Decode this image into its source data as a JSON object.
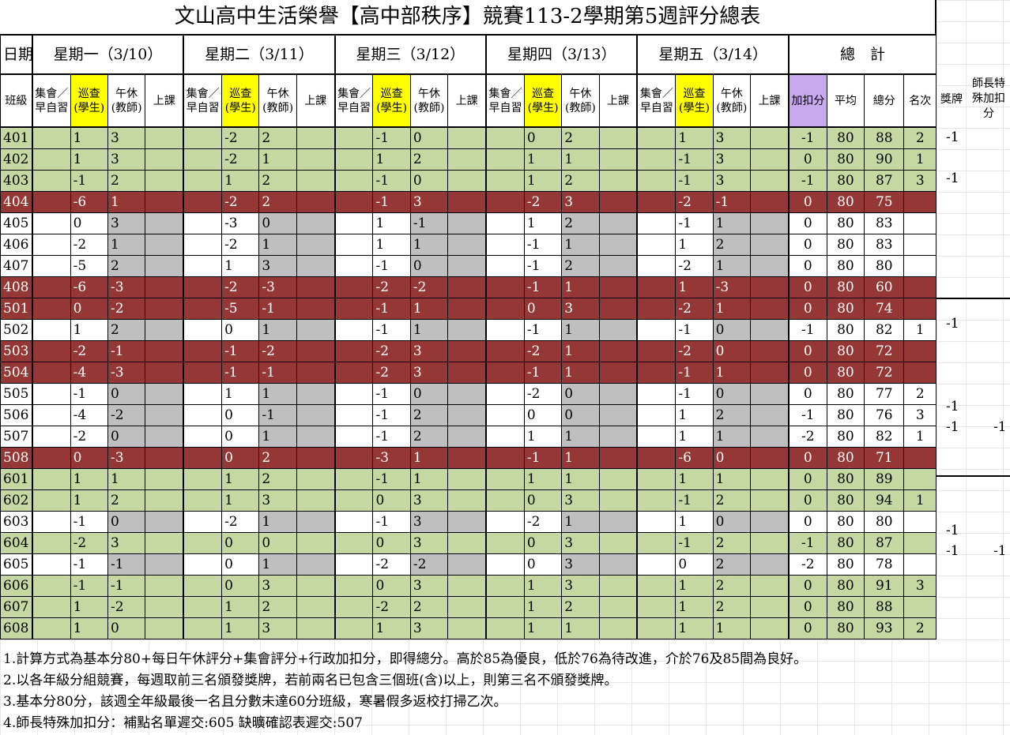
{
  "title": "文山高中生活榮譽【高中部秩序】競賽113-2學期第5週評分總表",
  "header": {
    "date_label": "日期",
    "class_label": "班級",
    "days": [
      "星期一（3/10）",
      "星期二（3/11）",
      "星期三（3/12）",
      "星期四（3/13）",
      "星期五（3/14）"
    ],
    "total_label": "總　計",
    "sub": {
      "assembly": "集會／早自習",
      "patrol": "巡查(學生)",
      "noon": "午休(教師)",
      "class": "上課"
    },
    "totals": [
      "加扣分",
      "平均",
      "總分",
      "名次"
    ],
    "award": "獎牌",
    "teacher": "師長特殊加扣分"
  },
  "colors": {
    "green": "#c5d8a2",
    "red": "#953734",
    "gray": "#bfbfbf",
    "yellow": "#ffff00",
    "purple": "#c8a8ee"
  },
  "rows": [
    {
      "cls": "401",
      "t": "g",
      "d": [
        [
          "1",
          "3"
        ],
        [
          "-2",
          "2"
        ],
        [
          "-1",
          "0"
        ],
        [
          "0",
          "2"
        ],
        [
          "1",
          "3"
        ]
      ],
      "adj": "-1",
      "avg": "80",
      "total": "88",
      "rank": "2",
      "award": "-1",
      "teacher": ""
    },
    {
      "cls": "402",
      "t": "g",
      "d": [
        [
          "1",
          "3"
        ],
        [
          "-2",
          "1"
        ],
        [
          "1",
          "2"
        ],
        [
          "1",
          "1"
        ],
        [
          "-1",
          "3"
        ]
      ],
      "adj": "0",
      "avg": "80",
      "total": "90",
      "rank": "1",
      "award": "",
      "teacher": ""
    },
    {
      "cls": "403",
      "t": "g",
      "d": [
        [
          "-1",
          "2"
        ],
        [
          "1",
          "2"
        ],
        [
          "-1",
          "0"
        ],
        [
          "1",
          "2"
        ],
        [
          "-1",
          "3"
        ]
      ],
      "adj": "-1",
      "avg": "80",
      "total": "87",
      "rank": "3",
      "award": "-1",
      "teacher": ""
    },
    {
      "cls": "404",
      "t": "r",
      "d": [
        [
          "-6",
          "1"
        ],
        [
          "-2",
          "2"
        ],
        [
          "-1",
          "3"
        ],
        [
          "-2",
          "3"
        ],
        [
          "-2",
          "-1"
        ]
      ],
      "adj": "0",
      "avg": "80",
      "total": "75",
      "rank": "",
      "award": "",
      "teacher": ""
    },
    {
      "cls": "405",
      "t": "w",
      "d": [
        [
          "0",
          "3"
        ],
        [
          "-3",
          "0"
        ],
        [
          "1",
          "-1"
        ],
        [
          "1",
          "2"
        ],
        [
          "-1",
          "1"
        ]
      ],
      "adj": "0",
      "avg": "80",
      "total": "83",
      "rank": "",
      "award": "",
      "teacher": ""
    },
    {
      "cls": "406",
      "t": "w",
      "d": [
        [
          "-2",
          "1"
        ],
        [
          "-2",
          "1"
        ],
        [
          "1",
          "1"
        ],
        [
          "-1",
          "1"
        ],
        [
          "1",
          "2"
        ]
      ],
      "adj": "0",
      "avg": "80",
      "total": "83",
      "rank": "",
      "award": "",
      "teacher": ""
    },
    {
      "cls": "407",
      "t": "w",
      "d": [
        [
          "-5",
          "2"
        ],
        [
          "1",
          "3"
        ],
        [
          "-1",
          "0"
        ],
        [
          "-1",
          "2"
        ],
        [
          "-2",
          "1"
        ]
      ],
      "adj": "0",
      "avg": "80",
      "total": "80",
      "rank": "",
      "award": "",
      "teacher": ""
    },
    {
      "cls": "408",
      "t": "r",
      "d": [
        [
          "-6",
          "-3"
        ],
        [
          "-2",
          "-3"
        ],
        [
          "-2",
          "-2"
        ],
        [
          "-1",
          "1"
        ],
        [
          "1",
          "-3"
        ]
      ],
      "adj": "0",
      "avg": "80",
      "total": "60",
      "rank": "",
      "award": "",
      "teacher": ""
    },
    {
      "cls": "501",
      "t": "r",
      "d": [
        [
          "0",
          "-2"
        ],
        [
          "-5",
          "-1"
        ],
        [
          "-1",
          "1"
        ],
        [
          "0",
          "3"
        ],
        [
          "-2",
          "1"
        ]
      ],
      "adj": "0",
      "avg": "80",
      "total": "74",
      "rank": "",
      "award": "",
      "teacher": ""
    },
    {
      "cls": "502",
      "t": "w",
      "d": [
        [
          "1",
          "2"
        ],
        [
          "0",
          "1"
        ],
        [
          "-1",
          "1"
        ],
        [
          "-1",
          "1"
        ],
        [
          "-1",
          "0"
        ]
      ],
      "adj": "-1",
      "avg": "80",
      "total": "82",
      "rank": "1",
      "award": "-1",
      "teacher": ""
    },
    {
      "cls": "503",
      "t": "r",
      "d": [
        [
          "-2",
          "-1"
        ],
        [
          "-1",
          "-2"
        ],
        [
          "-2",
          "3"
        ],
        [
          "-2",
          "1"
        ],
        [
          "-2",
          "0"
        ]
      ],
      "adj": "0",
      "avg": "80",
      "total": "72",
      "rank": "",
      "award": "",
      "teacher": ""
    },
    {
      "cls": "504",
      "t": "r",
      "d": [
        [
          "-4",
          "-3"
        ],
        [
          "-1",
          "-1"
        ],
        [
          "-2",
          "3"
        ],
        [
          "-1",
          "1"
        ],
        [
          "-1",
          "1"
        ]
      ],
      "adj": "0",
      "avg": "80",
      "total": "72",
      "rank": "",
      "award": "",
      "teacher": ""
    },
    {
      "cls": "505",
      "t": "w",
      "d": [
        [
          "-1",
          "0"
        ],
        [
          "1",
          "1"
        ],
        [
          "-1",
          "0"
        ],
        [
          "-2",
          "0"
        ],
        [
          "-1",
          "0"
        ]
      ],
      "adj": "0",
      "avg": "80",
      "total": "77",
      "rank": "2",
      "award": "",
      "teacher": ""
    },
    {
      "cls": "506",
      "t": "w",
      "d": [
        [
          "-4",
          "-2"
        ],
        [
          "0",
          "-1"
        ],
        [
          "-1",
          "2"
        ],
        [
          "0",
          "0"
        ],
        [
          "1",
          "2"
        ]
      ],
      "adj": "-1",
      "avg": "80",
      "total": "76",
      "rank": "3",
      "award": "-1",
      "teacher": ""
    },
    {
      "cls": "507",
      "t": "w",
      "d": [
        [
          "-2",
          "0"
        ],
        [
          "0",
          "1"
        ],
        [
          "-1",
          "2"
        ],
        [
          "1",
          "1"
        ],
        [
          "1",
          "1"
        ]
      ],
      "adj": "-2",
      "avg": "80",
      "total": "82",
      "rank": "1",
      "award": "-1",
      "teacher": "-1"
    },
    {
      "cls": "508",
      "t": "r",
      "d": [
        [
          "0",
          "-3"
        ],
        [
          "0",
          "2"
        ],
        [
          "-3",
          "1"
        ],
        [
          "-1",
          "1"
        ],
        [
          "-6",
          "0"
        ]
      ],
      "adj": "0",
      "avg": "80",
      "total": "71",
      "rank": "",
      "award": "",
      "teacher": ""
    },
    {
      "cls": "601",
      "t": "g",
      "d": [
        [
          "1",
          "1"
        ],
        [
          "1",
          "2"
        ],
        [
          "-1",
          "1"
        ],
        [
          "1",
          "1"
        ],
        [
          "1",
          "1"
        ]
      ],
      "adj": "0",
      "avg": "80",
      "total": "89",
      "rank": "",
      "award": "",
      "teacher": ""
    },
    {
      "cls": "602",
      "t": "g",
      "d": [
        [
          "1",
          "2"
        ],
        [
          "1",
          "3"
        ],
        [
          "0",
          "3"
        ],
        [
          "0",
          "3"
        ],
        [
          "-1",
          "2"
        ]
      ],
      "adj": "0",
      "avg": "80",
      "total": "94",
      "rank": "1",
      "award": "",
      "teacher": ""
    },
    {
      "cls": "603",
      "t": "w",
      "d": [
        [
          "-1",
          "0"
        ],
        [
          "-2",
          "1"
        ],
        [
          "-1",
          "3"
        ],
        [
          "-2",
          "1"
        ],
        [
          "1",
          "0"
        ]
      ],
      "adj": "0",
      "avg": "80",
      "total": "80",
      "rank": "",
      "award": "",
      "teacher": ""
    },
    {
      "cls": "604",
      "t": "g",
      "d": [
        [
          "-2",
          "3"
        ],
        [
          "0",
          "0"
        ],
        [
          "0",
          "3"
        ],
        [
          "0",
          "3"
        ],
        [
          "-1",
          "2"
        ]
      ],
      "adj": "-1",
      "avg": "80",
      "total": "87",
      "rank": "",
      "award": "-1",
      "teacher": ""
    },
    {
      "cls": "605",
      "t": "w",
      "d": [
        [
          "-1",
          "-1"
        ],
        [
          "0",
          "1"
        ],
        [
          "-2",
          "-2"
        ],
        [
          "0",
          "3"
        ],
        [
          "0",
          "2"
        ]
      ],
      "adj": "-2",
      "avg": "80",
      "total": "78",
      "rank": "",
      "award": "-1",
      "teacher": "-1"
    },
    {
      "cls": "606",
      "t": "g",
      "d": [
        [
          "-1",
          "-1"
        ],
        [
          "0",
          "3"
        ],
        [
          "0",
          "3"
        ],
        [
          "1",
          "3"
        ],
        [
          "1",
          "2"
        ]
      ],
      "adj": "0",
      "avg": "80",
      "total": "91",
      "rank": "3",
      "award": "",
      "teacher": ""
    },
    {
      "cls": "607",
      "t": "g",
      "d": [
        [
          "1",
          "-2"
        ],
        [
          "1",
          "2"
        ],
        [
          "-2",
          "2"
        ],
        [
          "1",
          "2"
        ],
        [
          "1",
          "2"
        ]
      ],
      "adj": "0",
      "avg": "80",
      "total": "88",
      "rank": "",
      "award": "",
      "teacher": ""
    },
    {
      "cls": "608",
      "t": "g",
      "d": [
        [
          "1",
          "0"
        ],
        [
          "1",
          "3"
        ],
        [
          "1",
          "3"
        ],
        [
          "1",
          "1"
        ],
        [
          "1",
          "1"
        ]
      ],
      "adj": "0",
      "avg": "80",
      "total": "93",
      "rank": "2",
      "award": "",
      "teacher": ""
    }
  ],
  "notes": [
    "1.計算方式為基本分80+每日午休評分+集會評分+行政加扣分，即得總分。高於85為優良，低於76為待改進，介於76及85間為良好。",
    "2.以各年級分組競賽，每週取前三名頒發獎牌，若前兩名已包含三個班(含)以上，則第三名不頒發獎牌。",
    "3.基本分80分，該週全年級最後一名且分數未達60分班級，寒暑假多返校打掃乙次。",
    "4.師長特殊加扣分：補點名單遲交:605 缺曠確認表遲交:507"
  ]
}
